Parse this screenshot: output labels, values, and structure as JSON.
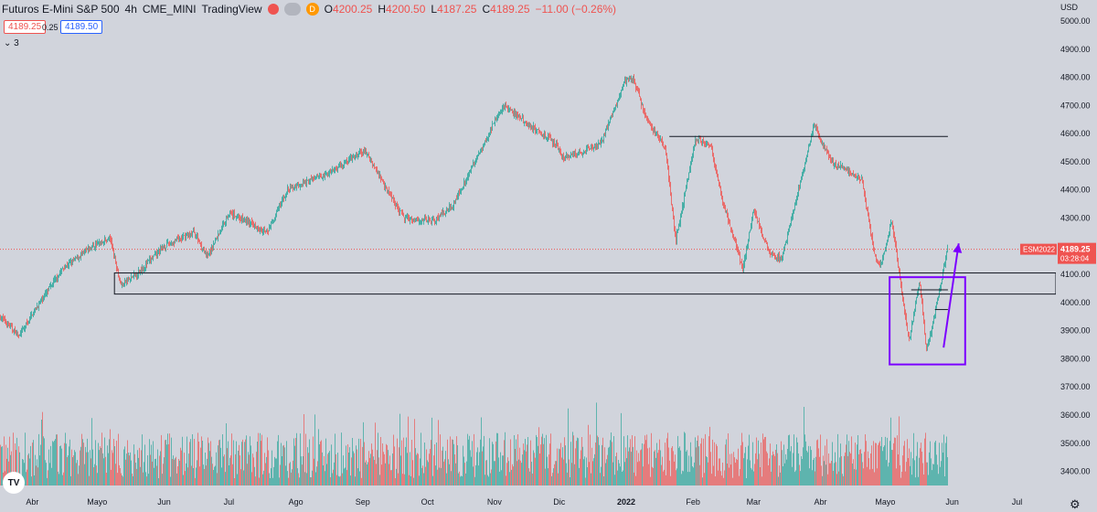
{
  "header": {
    "title": "Futuros E-Mini S&P 500",
    "interval": "4h",
    "exchange": "CME_MINI",
    "source": "TradingView",
    "status_letter": "D",
    "ohlc": {
      "o_label": "O",
      "o": "4200.25",
      "h_label": "H",
      "h": "4200.50",
      "l_label": "L",
      "l": "4187.25",
      "c_label": "C",
      "c": "4189.25",
      "change": "−11.00 (−0.26%)"
    },
    "sell_price": "4189.25",
    "spread": "0.25",
    "buy_price": "4189.50",
    "indicator_count": "3"
  },
  "colors": {
    "background": "#d1d4dc",
    "up": "#26a69a",
    "down": "#ef5350",
    "annotation": "#7b00ff",
    "line": "#131722"
  },
  "chart_data": {
    "type": "candlestick",
    "title": "",
    "currency": "USD",
    "y_range": [
      3350,
      5000
    ],
    "y_ticks": [
      3400,
      3500,
      3600,
      3700,
      3800,
      3900,
      4000,
      4100,
      4200,
      4300,
      4400,
      4500,
      4600,
      4700,
      4800,
      4900,
      5000
    ],
    "x_labels": [
      "Abr",
      "Mayo",
      "Jun",
      "Jul",
      "Ago",
      "Sep",
      "Oct",
      "Nov",
      "Dic",
      "2022",
      "Feb",
      "Mar",
      "Abr",
      "Mayo",
      "Jun",
      "Jul"
    ],
    "x_label_dates": [
      "2021-04",
      "2021-05",
      "2021-06",
      "2021-07",
      "2021-08",
      "2021-09",
      "2021-10",
      "2021-11",
      "2021-12",
      "2022-01",
      "2022-02",
      "2022-03",
      "2022-04",
      "2022-05",
      "2022-06",
      "2022-07"
    ],
    "x_range": [
      "2021-03-17",
      "2022-07-19"
    ],
    "price_path": [
      [
        "2021-03-17",
        3950
      ],
      [
        "2021-03-26",
        3880
      ],
      [
        "2021-04-01",
        3960
      ],
      [
        "2021-04-15",
        4120
      ],
      [
        "2021-04-29",
        4200
      ],
      [
        "2021-05-07",
        4230
      ],
      [
        "2021-05-12",
        4060
      ],
      [
        "2021-05-19",
        4100
      ],
      [
        "2021-06-01",
        4200
      ],
      [
        "2021-06-15",
        4250
      ],
      [
        "2021-06-21",
        4160
      ],
      [
        "2021-07-01",
        4320
      ],
      [
        "2021-07-19",
        4250
      ],
      [
        "2021-07-28",
        4400
      ],
      [
        "2021-08-16",
        4460
      ],
      [
        "2021-09-02",
        4540
      ],
      [
        "2021-09-20",
        4300
      ],
      [
        "2021-10-04",
        4290
      ],
      [
        "2021-10-13",
        4350
      ],
      [
        "2021-11-05",
        4700
      ],
      [
        "2021-11-30",
        4560
      ],
      [
        "2021-12-03",
        4510
      ],
      [
        "2021-12-20",
        4560
      ],
      [
        "2021-12-31",
        4780
      ],
      [
        "2022-01-04",
        4800
      ],
      [
        "2022-01-10",
        4660
      ],
      [
        "2022-01-19",
        4550
      ],
      [
        "2022-01-24",
        4220
      ],
      [
        "2022-02-02",
        4580
      ],
      [
        "2022-02-09",
        4560
      ],
      [
        "2022-02-14",
        4380
      ],
      [
        "2022-02-24",
        4120
      ],
      [
        "2022-03-01",
        4330
      ],
      [
        "2022-03-08",
        4180
      ],
      [
        "2022-03-14",
        4150
      ],
      [
        "2022-03-29",
        4630
      ],
      [
        "2022-04-06",
        4500
      ],
      [
        "2022-04-20",
        4440
      ],
      [
        "2022-04-26",
        4170
      ],
      [
        "2022-04-29",
        4130
      ],
      [
        "2022-05-04",
        4290
      ],
      [
        "2022-05-12",
        3860
      ],
      [
        "2022-05-17",
        4080
      ],
      [
        "2022-05-20",
        3820
      ],
      [
        "2022-05-26",
        4040
      ],
      [
        "2022-05-30",
        4200
      ]
    ],
    "volume_range": [
      0,
      1
    ],
    "last_price": 4189.25,
    "price_label": {
      "symbol": "ESM2022",
      "price": "4189.25",
      "countdown": "03:28:04"
    },
    "support_zone": {
      "x_start": "2021-05-09",
      "x_end": "2022-07-19",
      "y_low": 4030,
      "y_high": 4105
    },
    "resistance_line": {
      "x_start": "2022-01-21",
      "x_end": "2022-05-30",
      "y": 4590
    },
    "bottom_box": {
      "x_start": "2022-05-03",
      "x_end": "2022-06-07",
      "y_low": 3780,
      "y_high": 4090
    },
    "small_line": {
      "x_start": "2022-05-13",
      "x_end": "2022-05-30",
      "y": 4045
    },
    "small_line_2": {
      "x_start": "2022-05-24",
      "x_end": "2022-05-30",
      "y": 3975
    },
    "arrow": {
      "x_start": "2022-05-28",
      "x_end": "2022-06-04",
      "y_start": 3840,
      "y_end": 4210
    }
  }
}
